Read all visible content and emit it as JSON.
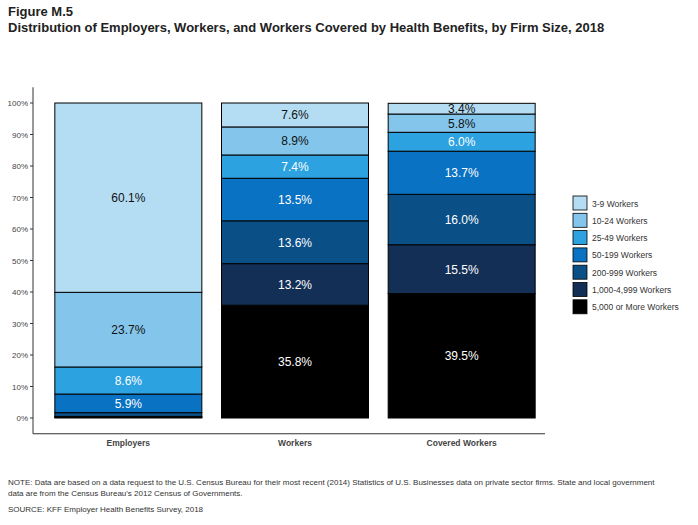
{
  "chart_data": {
    "type": "bar",
    "title": "Figure M.5",
    "subtitle": "Distribution of Employers, Workers, and Workers Covered by Health Benefits, by Firm Size, 2018",
    "annotations": [
      "NOTE: Data are based on a data request to the U.S. Census Bureau for their most recent (2014) Statistics of U.S. Businesses data on private sector firms. State and local government data are from the Census Bureau's 2012 Census of Governments.",
      "SOURCE: KFF Employer Health Benefits Survey, 2018"
    ],
    "categories": [
      "Employers",
      "Workers",
      "Covered Workers"
    ],
    "stacked": true,
    "data_labels": true,
    "grid": false,
    "legend": "right",
    "ylim": [
      -5,
      105
    ],
    "yticks": [
      {
        "value": 0,
        "label": "0%"
      },
      {
        "value": 10,
        "label": "10%"
      },
      {
        "value": 20,
        "label": "20%"
      },
      {
        "value": 30,
        "label": "30%"
      },
      {
        "value": 40,
        "label": "40%"
      },
      {
        "value": 50,
        "label": "50%"
      },
      {
        "value": 60,
        "label": "60%"
      },
      {
        "value": 70,
        "label": "70%"
      },
      {
        "value": 80,
        "label": "80%"
      },
      {
        "value": 90,
        "label": "90%"
      },
      {
        "value": 100,
        "label": "100%"
      }
    ],
    "series": [
      {
        "name": "3-9 Workers",
        "color": "#b4ddf4",
        "values": [
          60.1,
          7.6,
          3.4
        ],
        "value_labels": [
          "60.1%",
          "7.6%",
          "3.4%"
        ]
      },
      {
        "name": "10-24 Workers",
        "color": "#84c6eb",
        "values": [
          23.7,
          8.9,
          5.8
        ],
        "value_labels": [
          "23.7%",
          "8.9%",
          "5.8%"
        ]
      },
      {
        "name": "25-49 Workers",
        "color": "#2ca2e1",
        "values": [
          8.6,
          7.4,
          6.0
        ],
        "value_labels": [
          "8.6%",
          "7.4%",
          "6.0%"
        ]
      },
      {
        "name": "50-199 Workers",
        "color": "#0a72c2",
        "values": [
          5.9,
          13.5,
          13.7
        ],
        "value_labels": [
          "5.9%",
          "13.5%",
          "13.7%"
        ]
      },
      {
        "name": "200-999 Workers",
        "color": "#0b4f87",
        "values": [
          1.2,
          13.6,
          16.0
        ],
        "value_labels": [
          null,
          "13.6%",
          "16.0%"
        ]
      },
      {
        "name": "1,000-4,999 Workers",
        "color": "#132f56",
        "values": [
          0.3,
          13.2,
          15.5
        ],
        "value_labels": [
          null,
          "13.2%",
          "15.5%"
        ]
      },
      {
        "name": "5,000 or More Workers",
        "color": "#000000",
        "values": [
          0.2,
          35.8,
          39.5
        ],
        "value_labels": [
          null,
          "35.8%",
          "39.5%"
        ]
      }
    ]
  }
}
